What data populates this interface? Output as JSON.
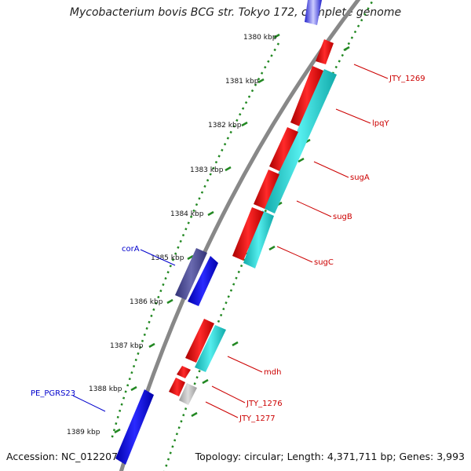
{
  "title": "Mycobacterium bovis BCG str. Tokyo 172, complete genome",
  "footer": {
    "accession": "Accession: NC_012207",
    "topology": "Topology: circular; Length: 4,371,711 bp; Genes: 3,993"
  },
  "scale_labels": [
    "1380 kbp",
    "1381 kbp",
    "1382 kbp",
    "1383 kbp",
    "1384 kbp",
    "1385 kbp",
    "1386 kbp",
    "1387 kbp",
    "1388 kbp",
    "1389 kbp"
  ],
  "gene_labels": {
    "JTY_1269": "JTY_1269",
    "lpqY": "lpqY",
    "sugA": "sugA",
    "sugB": "sugB",
    "sugC": "sugC",
    "mdh": "mdh",
    "JTY_1276": "JTY_1276",
    "JTY_1277": "JTY_1277",
    "corA": "corA",
    "PE_PGRS23": "PE_PGRS23"
  },
  "colors": {
    "backbone": "#888888",
    "red_gene": "#ee1111",
    "cyan_gene": "#22cccc",
    "blue_gene": "#1010dd",
    "navy_gene": "#4a4a99",
    "grey_gene": "#bbbbbb",
    "tick": "#228822",
    "red_label": "#cc0000",
    "blue_label": "#0000cc"
  }
}
